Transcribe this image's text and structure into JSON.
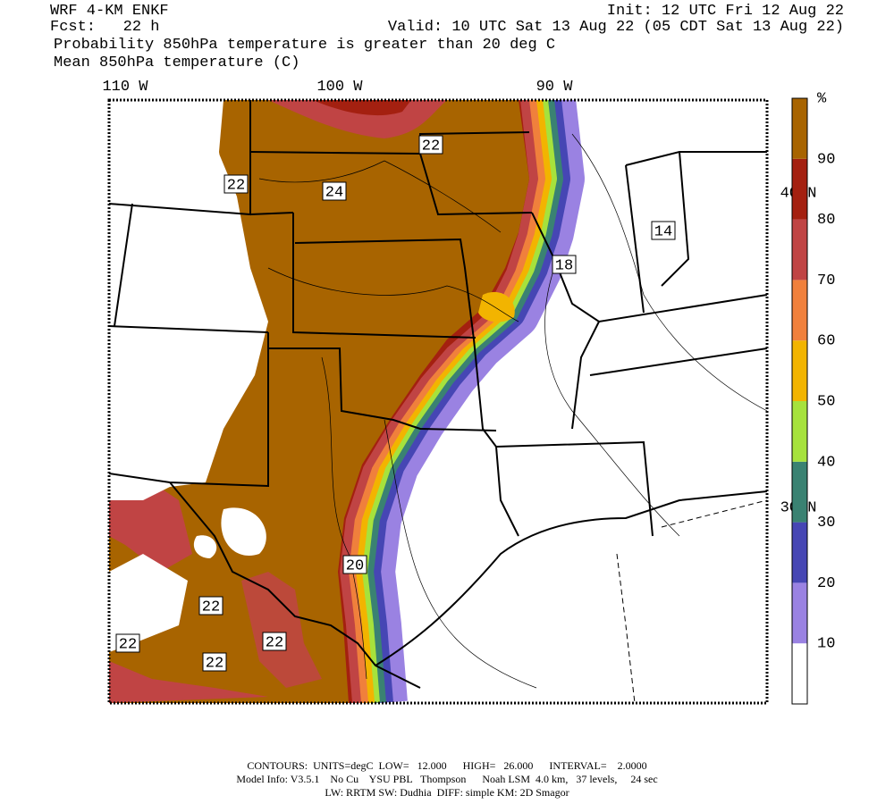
{
  "header": {
    "model": "WRF 4-KM ENKF",
    "init": "Init: 12 UTC Fri 12 Aug 22",
    "forecast": "Fcst:   22 h",
    "valid": "Valid: 10 UTC Sat 13 Aug 22 (05 CDT Sat 13 Aug 22)",
    "field_1": "Probability 850hPa temperature is greater than 20 deg C",
    "field_2": "Mean 850hPa temperature (C)"
  },
  "map": {
    "lon_labels": [
      "110 W",
      "100 W",
      "90 W"
    ],
    "lat_labels": [
      "40 N",
      "30 N"
    ],
    "contour_labels": [
      "22",
      "24",
      "22",
      "14",
      "18",
      "20",
      "22",
      "22",
      "22",
      "22"
    ]
  },
  "colorbar": {
    "unit": "%",
    "labels": [
      "10",
      "20",
      "30",
      "40",
      "50",
      "60",
      "70",
      "80",
      "90"
    ],
    "colors": [
      "#ffffff",
      "#9a82e2",
      "#4646b4",
      "#3a8272",
      "#a6e23c",
      "#f2b400",
      "#f0803c",
      "#c04444",
      "#a42010",
      "#a86400"
    ]
  },
  "footer": {
    "line_1": "CONTOURS:  UNITS=degC  LOW=   12.000      HIGH=   26.000      INTERVAL=    2.0000",
    "line_2": "Model Info: V3.5.1    No Cu    YSU PBL   Thompson      Noah LSM  4.0 km,   37 levels,     24 sec",
    "line_3": "LW: RRTM SW: Dudhia  DIFF: simple KM: 2D Smagor"
  }
}
